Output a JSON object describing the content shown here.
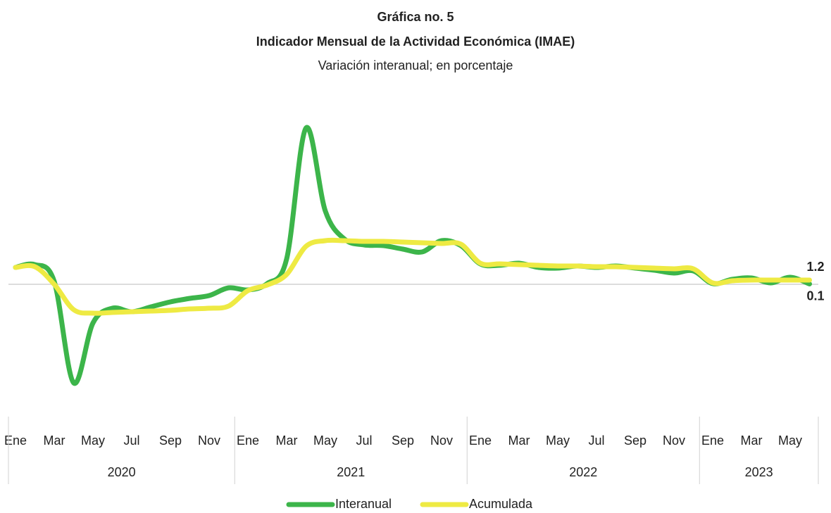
{
  "chart_data": {
    "type": "line",
    "title": "Gráfica no. 5",
    "subtitle": "Indicador Mensual de la Actividad Económica (IMAE)",
    "note": "Variación interanual; en porcentaje",
    "categories": [
      "Ene",
      null,
      "Mar",
      null,
      "May",
      null,
      "Jul",
      null,
      "Sep",
      null,
      "Nov",
      null,
      "Ene",
      null,
      "Mar",
      null,
      "May",
      null,
      "Jul",
      null,
      "Sep",
      null,
      "Nov",
      null,
      "Ene",
      null,
      "Mar",
      null,
      "May",
      null,
      "Jul",
      null,
      "Sep",
      null,
      "Nov",
      null,
      "Ene",
      null,
      "Mar",
      null,
      "May",
      null
    ],
    "x_groups": [
      "2020",
      "2021",
      "2022",
      "2023"
    ],
    "ylim": [
      -35,
      50
    ],
    "series": [
      {
        "name": "Interanual",
        "color": "#3cb54a",
        "values": [
          4.8,
          5.6,
          0.8,
          -28,
          -11,
          -6.8,
          -7.8,
          -6.4,
          -5,
          -4,
          -3.2,
          -1,
          -1.6,
          0.2,
          7.2,
          44.4,
          20.8,
          12.8,
          11.2,
          11,
          10,
          9.2,
          12.4,
          11,
          5.8,
          5.4,
          6,
          4.8,
          4.6,
          5.2,
          4.8,
          5.2,
          4.6,
          4,
          3.2,
          3.8,
          0.2,
          1.4,
          1.8,
          0.4,
          2,
          0.1
        ],
        "value_labels": [
          null,
          null,
          null,
          null,
          null,
          null,
          null,
          null,
          null,
          null,
          null,
          null,
          null,
          null,
          null,
          null,
          null,
          null,
          null,
          null,
          null,
          null,
          null,
          null,
          null,
          null,
          null,
          null,
          null,
          null,
          null,
          null,
          null,
          null,
          null,
          null,
          null,
          null,
          null,
          null,
          null,
          "0.1"
        ]
      },
      {
        "name": "Acumulada",
        "color": "#eeea43",
        "values": [
          4.8,
          5,
          0,
          -7.2,
          -8.2,
          -8,
          -7.8,
          -7.6,
          -7.4,
          -7,
          -6.8,
          -6.2,
          -1.8,
          -0.2,
          2.8,
          10.8,
          12.4,
          12.4,
          12.2,
          12.2,
          12,
          11.8,
          11.6,
          11.4,
          6,
          5.8,
          5.6,
          5.4,
          5.2,
          5.2,
          5,
          5,
          4.8,
          4.6,
          4.4,
          4.4,
          0.4,
          1,
          1.2,
          1.2,
          1.2,
          1.2
        ],
        "value_labels": [
          null,
          null,
          null,
          null,
          null,
          null,
          null,
          null,
          null,
          null,
          null,
          null,
          null,
          null,
          null,
          null,
          null,
          null,
          null,
          null,
          null,
          null,
          null,
          null,
          null,
          null,
          null,
          null,
          null,
          null,
          null,
          null,
          null,
          null,
          null,
          null,
          null,
          null,
          null,
          null,
          null,
          "1.2"
        ]
      }
    ]
  }
}
